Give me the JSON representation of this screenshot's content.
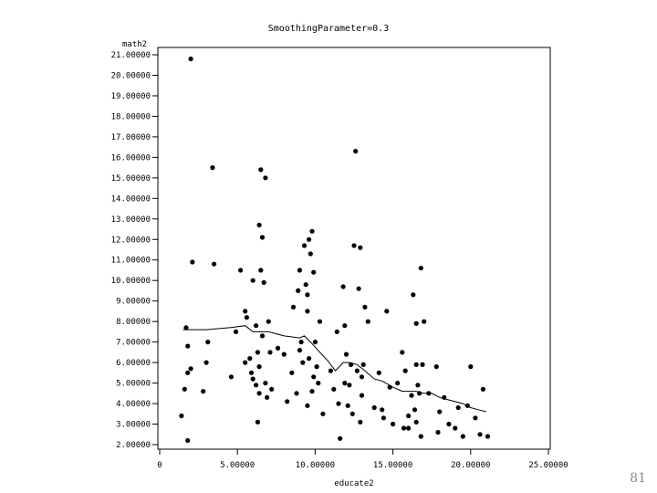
{
  "slide_number": "81",
  "chart_data": {
    "type": "scatter",
    "title": "SmoothingParameter=0.3",
    "xlabel": "educate2",
    "ylabel": "math2",
    "xlim": [
      0,
      25
    ],
    "ylim": [
      2,
      21
    ],
    "x_ticks": [
      "0",
      "5.00000",
      "10.00000",
      "15.00000",
      "20.00000",
      "25.00000"
    ],
    "y_ticks": [
      "2.00000",
      "3.00000",
      "4.00000",
      "5.00000",
      "6.00000",
      "7.00000",
      "8.00000",
      "9.00000",
      "10.00000",
      "11.00000",
      "12.00000",
      "13.00000",
      "14.00000",
      "15.00000",
      "16.00000",
      "17.00000",
      "18.00000",
      "19.00000",
      "20.00000",
      "21.00000"
    ],
    "grid": false,
    "colors": {
      "points": "#000000",
      "line": "#000000",
      "frame": "#000000"
    },
    "series": [
      {
        "kind": "points",
        "points": [
          [
            2.0,
            20.8
          ],
          [
            2.1,
            10.9
          ],
          [
            1.7,
            7.7
          ],
          [
            1.8,
            6.8
          ],
          [
            2.0,
            5.7
          ],
          [
            1.8,
            5.5
          ],
          [
            1.6,
            4.7
          ],
          [
            1.4,
            3.4
          ],
          [
            1.8,
            2.2
          ],
          [
            3.1,
            7.0
          ],
          [
            3.0,
            6.0
          ],
          [
            3.4,
            15.5
          ],
          [
            3.5,
            10.8
          ],
          [
            2.8,
            4.6
          ],
          [
            4.6,
            5.3
          ],
          [
            4.9,
            7.5
          ],
          [
            5.2,
            10.5
          ],
          [
            5.5,
            8.5
          ],
          [
            5.6,
            8.2
          ],
          [
            5.5,
            6.0
          ],
          [
            5.9,
            5.5
          ],
          [
            6.0,
            10.0
          ],
          [
            6.2,
            7.8
          ],
          [
            6.4,
            12.7
          ],
          [
            6.5,
            15.4
          ],
          [
            6.6,
            12.1
          ],
          [
            6.5,
            10.5
          ],
          [
            6.8,
            15.0
          ],
          [
            6.7,
            9.9
          ],
          [
            6.6,
            7.3
          ],
          [
            6.3,
            6.5
          ],
          [
            6.4,
            5.8
          ],
          [
            6.2,
            4.9
          ],
          [
            6.4,
            4.5
          ],
          [
            6.3,
            3.1
          ],
          [
            6.8,
            5.0
          ],
          [
            7.0,
            8.0
          ],
          [
            7.1,
            6.5
          ],
          [
            6.9,
            4.3
          ],
          [
            7.2,
            4.7
          ],
          [
            6.0,
            5.2
          ],
          [
            5.8,
            6.2
          ],
          [
            7.6,
            6.7
          ],
          [
            8.0,
            6.4
          ],
          [
            8.2,
            4.1
          ],
          [
            8.5,
            5.5
          ],
          [
            8.6,
            8.7
          ],
          [
            8.8,
            4.5
          ],
          [
            8.9,
            9.5
          ],
          [
            9.0,
            10.5
          ],
          [
            9.1,
            7.0
          ],
          [
            9.3,
            11.7
          ],
          [
            9.4,
            9.8
          ],
          [
            9.5,
            9.3
          ],
          [
            9.5,
            8.5
          ],
          [
            9.6,
            12.0
          ],
          [
            9.7,
            11.3
          ],
          [
            9.8,
            12.4
          ],
          [
            9.9,
            10.4
          ],
          [
            9.2,
            6.0
          ],
          [
            9.6,
            6.2
          ],
          [
            10.0,
            7.0
          ],
          [
            10.1,
            5.8
          ],
          [
            9.9,
            5.3
          ],
          [
            10.2,
            5.0
          ],
          [
            9.8,
            4.6
          ],
          [
            9.5,
            3.9
          ],
          [
            10.3,
            8.0
          ],
          [
            9.0,
            6.6
          ],
          [
            10.5,
            3.5
          ],
          [
            11.0,
            5.6
          ],
          [
            11.2,
            4.7
          ],
          [
            11.4,
            7.5
          ],
          [
            11.5,
            4.0
          ],
          [
            11.8,
            9.7
          ],
          [
            11.9,
            7.8
          ],
          [
            11.9,
            5.0
          ],
          [
            12.0,
            6.4
          ],
          [
            12.2,
            4.9
          ],
          [
            12.3,
            5.9
          ],
          [
            12.5,
            11.7
          ],
          [
            12.6,
            16.3
          ],
          [
            12.7,
            5.6
          ],
          [
            12.8,
            9.6
          ],
          [
            12.9,
            11.6
          ],
          [
            13.0,
            5.3
          ],
          [
            13.1,
            5.9
          ],
          [
            13.2,
            8.7
          ],
          [
            13.4,
            8.0
          ],
          [
            12.4,
            3.5
          ],
          [
            12.9,
            3.1
          ],
          [
            11.6,
            2.3
          ],
          [
            12.1,
            3.9
          ],
          [
            13.0,
            4.4
          ],
          [
            13.8,
            3.8
          ],
          [
            14.1,
            5.5
          ],
          [
            14.3,
            3.7
          ],
          [
            14.4,
            3.3
          ],
          [
            14.6,
            8.5
          ],
          [
            14.8,
            4.8
          ],
          [
            15.0,
            3.0
          ],
          [
            15.3,
            5.0
          ],
          [
            15.6,
            6.5
          ],
          [
            15.8,
            5.6
          ],
          [
            16.0,
            3.4
          ],
          [
            16.2,
            4.4
          ],
          [
            16.3,
            9.3
          ],
          [
            16.5,
            7.9
          ],
          [
            16.5,
            5.9
          ],
          [
            16.6,
            4.9
          ],
          [
            16.7,
            4.5
          ],
          [
            16.8,
            10.6
          ],
          [
            16.9,
            5.9
          ],
          [
            17.0,
            8.0
          ],
          [
            17.3,
            4.5
          ],
          [
            16.4,
            3.7
          ],
          [
            16.0,
            2.8
          ],
          [
            16.8,
            2.4
          ],
          [
            16.5,
            3.1
          ],
          [
            17.8,
            5.8
          ],
          [
            18.0,
            3.6
          ],
          [
            18.3,
            4.3
          ],
          [
            18.6,
            3.0
          ],
          [
            19.0,
            2.8
          ],
          [
            19.2,
            3.8
          ],
          [
            19.5,
            2.4
          ],
          [
            19.8,
            3.9
          ],
          [
            20.0,
            5.8
          ],
          [
            20.3,
            3.3
          ],
          [
            20.6,
            2.5
          ],
          [
            20.8,
            4.7
          ],
          [
            21.1,
            2.4
          ],
          [
            17.9,
            2.6
          ],
          [
            15.7,
            2.8
          ]
        ]
      },
      {
        "kind": "line",
        "points": [
          [
            1.5,
            7.6
          ],
          [
            3.0,
            7.6
          ],
          [
            4.5,
            7.7
          ],
          [
            5.5,
            7.8
          ],
          [
            6.0,
            7.5
          ],
          [
            7.0,
            7.5
          ],
          [
            8.0,
            7.3
          ],
          [
            9.0,
            7.2
          ],
          [
            9.3,
            7.3
          ],
          [
            9.7,
            7.0
          ],
          [
            10.3,
            6.5
          ],
          [
            10.8,
            6.1
          ],
          [
            11.3,
            5.6
          ],
          [
            11.8,
            6.0
          ],
          [
            12.2,
            6.0
          ],
          [
            12.7,
            5.9
          ],
          [
            13.2,
            5.6
          ],
          [
            13.8,
            5.2
          ],
          [
            14.3,
            5.1
          ],
          [
            15.0,
            4.8
          ],
          [
            15.6,
            4.6
          ],
          [
            16.0,
            4.6
          ],
          [
            16.5,
            4.6
          ],
          [
            17.0,
            4.5
          ],
          [
            17.5,
            4.5
          ],
          [
            18.0,
            4.3
          ],
          [
            18.5,
            4.2
          ],
          [
            19.5,
            4.0
          ],
          [
            20.0,
            3.8
          ],
          [
            20.5,
            3.7
          ],
          [
            21.0,
            3.6
          ]
        ]
      }
    ]
  }
}
